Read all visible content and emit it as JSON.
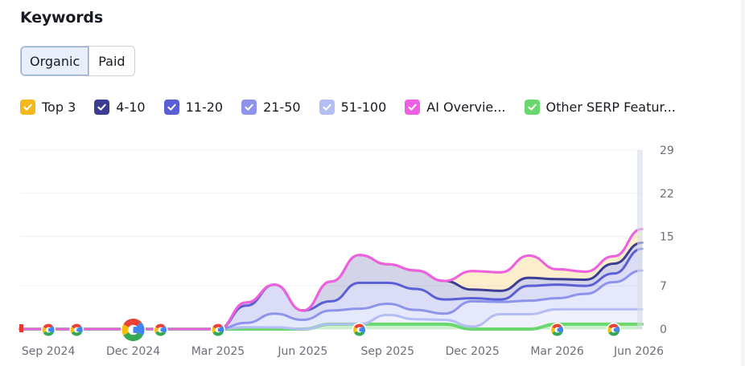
{
  "header": {
    "title": "Keywords"
  },
  "tabs": [
    {
      "label": "Organic",
      "active": true
    },
    {
      "label": "Paid",
      "active": false
    }
  ],
  "legend": [
    {
      "label": "Top 3",
      "color": "#f5b81c",
      "checked": true
    },
    {
      "label": "4-10",
      "color": "#3b3d94",
      "checked": true
    },
    {
      "label": "11-20",
      "color": "#5b5fd6",
      "checked": true
    },
    {
      "label": "21-50",
      "color": "#8e94eb",
      "checked": true
    },
    {
      "label": "51-100",
      "color": "#b4bdf5",
      "checked": true
    },
    {
      "label": "AI Overvie...",
      "color": "#ef5fe4",
      "checked": true
    },
    {
      "label": "Other SERP Featur...",
      "color": "#6bd76f",
      "checked": true
    }
  ],
  "chart_data": {
    "type": "area",
    "stacked": true,
    "x_ticks": [
      "Sep 2024",
      "Dec 2024",
      "Mar 2025",
      "Jun 2025",
      "Sep 2025",
      "Dec 2025",
      "Mar 2026",
      "Jun 2026"
    ],
    "y_ticks": [
      0,
      7,
      15,
      22,
      29
    ],
    "ylim": [
      0,
      29
    ],
    "y_axis_position": "right",
    "grid": true,
    "x": [
      "Aug 2024",
      "Sep 2024",
      "Oct 2024",
      "Nov 2024",
      "Dec 2024",
      "Jan 2025",
      "Feb 2025",
      "Mar 2025",
      "Apr 2025",
      "May 2025",
      "Jun 2025",
      "Jul 2025",
      "Aug 2025",
      "Sep 2025",
      "Oct 2025",
      "Nov 2025",
      "Dec 2025",
      "Jan 2026",
      "Feb 2026",
      "Mar 2026",
      "Apr 2026",
      "May 2026",
      "Jun 2026"
    ],
    "series": [
      {
        "name": "Other SERP Featur...",
        "color": "#6bd76f",
        "values": [
          0,
          0,
          0,
          0,
          0,
          0,
          0,
          0,
          0,
          0,
          0,
          0.8,
          0.8,
          0.8,
          0.8,
          0.8,
          0,
          0,
          0,
          0.8,
          0.8,
          0.8,
          0.8
        ]
      },
      {
        "name": "51-100",
        "color": "#b4bdf5",
        "values": [
          0,
          0,
          0,
          0,
          0,
          0,
          0,
          0,
          0.3,
          0.3,
          0,
          0,
          0,
          1.5,
          0.8,
          0.7,
          0.4,
          2.4,
          2.4,
          2.4,
          2.4,
          2.4,
          2.4
        ]
      },
      {
        "name": "21-50",
        "color": "#8e94eb",
        "values": [
          0,
          0,
          0,
          0,
          0,
          0,
          0,
          0,
          0.7,
          2.2,
          1.5,
          2.2,
          2.5,
          1.8,
          1.5,
          1,
          4.1,
          2,
          2.2,
          1.8,
          2.5,
          4.4,
          6.3
        ]
      },
      {
        "name": "11-20",
        "color": "#5b5fd6",
        "values": [
          0,
          0,
          0,
          0,
          0,
          0,
          0,
          0,
          2.8,
          4.7,
          1.5,
          1.5,
          4.2,
          3.4,
          3.4,
          2.3,
          0.5,
          0.4,
          2.4,
          2.2,
          1.3,
          1.4,
          3.5
        ]
      },
      {
        "name": "4-10",
        "color": "#3b3d94",
        "values": [
          0,
          0,
          0,
          0,
          0,
          0,
          0,
          0,
          0.5,
          0,
          0,
          3.2,
          4.5,
          3,
          3,
          3,
          1.4,
          1.4,
          1.3,
          0.9,
          1,
          1.6,
          1
        ]
      },
      {
        "name": "Top 3",
        "color": "#f5b81c",
        "values": [
          0,
          0,
          0,
          0,
          0,
          0,
          0,
          0,
          0,
          0,
          0,
          0,
          0,
          0,
          0,
          0,
          3,
          3,
          3.6,
          1.6,
          1.3,
          1.2,
          2.2
        ]
      },
      {
        "name": "AI Overvie...",
        "color": "#ef5fe4",
        "values": [
          0,
          0,
          0,
          0,
          0,
          0,
          0,
          0,
          0,
          0,
          0,
          0,
          0,
          0,
          0,
          0,
          0,
          0,
          0,
          0,
          0,
          0,
          0
        ]
      }
    ],
    "markers": [
      {
        "x": "Sep 2024",
        "size": "small"
      },
      {
        "x": "Oct 2024",
        "size": "small"
      },
      {
        "x": "Dec 2024",
        "size": "large"
      },
      {
        "x": "Dec 2024",
        "size": "small",
        "offset": 1
      },
      {
        "x": "Mar 2025",
        "size": "small"
      },
      {
        "x": "Aug 2025",
        "size": "small"
      },
      {
        "x": "Mar 2026",
        "size": "small"
      },
      {
        "x": "May 2026",
        "size": "small"
      }
    ]
  }
}
